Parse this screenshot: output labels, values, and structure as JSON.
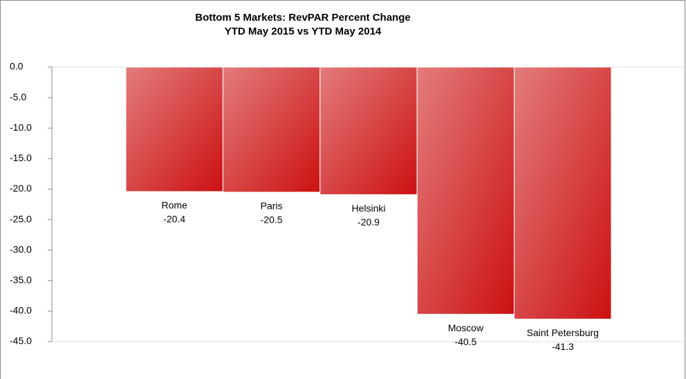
{
  "chart_data": {
    "type": "bar",
    "title": "Bottom 5 Markets: RevPAR Percent Change",
    "subtitle": "YTD May 2015 vs YTD May 2014",
    "categories": [
      "Rome",
      "Paris",
      "Helsinki",
      "Moscow",
      "Saint Petersburg"
    ],
    "values": [
      -20.4,
      -20.5,
      -20.9,
      -40.5,
      -41.3
    ],
    "color": "#cc1111",
    "ylim": [
      -45,
      0
    ],
    "yticks": [
      {
        "value": 0,
        "label": "0.0"
      },
      {
        "value": -5,
        "label": "-5.0"
      },
      {
        "value": -10,
        "label": "-10.0"
      },
      {
        "value": -15,
        "label": "-15.0"
      },
      {
        "value": -20,
        "label": "-20.0"
      },
      {
        "value": -25,
        "label": "-25.0"
      },
      {
        "value": -30,
        "label": "-30.0"
      },
      {
        "value": -35,
        "label": "-35.0"
      },
      {
        "value": -40,
        "label": "-40.0"
      },
      {
        "value": -45,
        "label": "-45.0"
      }
    ],
    "grid": false
  }
}
